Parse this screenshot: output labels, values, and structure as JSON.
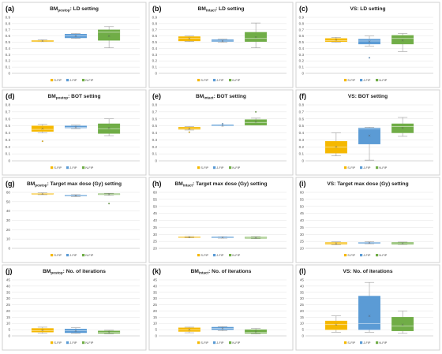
{
  "colors": {
    "S-FIP": "#F5B800",
    "J-FIP": "#5B9BD5",
    "N-FIP": "#70AD47"
  },
  "legend": [
    "S-FIP",
    "J-FIP",
    "N-FIP"
  ],
  "chart_data": [
    {
      "label": "(a)",
      "title": "BM",
      "title_sub": "postop",
      "title_rest": ": LD setting",
      "type": "box",
      "ylim": [
        0,
        0.9
      ],
      "yticks": [
        0,
        0.1,
        0.2,
        0.3,
        0.4,
        0.5,
        0.6,
        0.7,
        0.8,
        0.9
      ],
      "series": [
        {
          "name": "S-FIP",
          "min": 0.51,
          "q1": 0.51,
          "median": 0.52,
          "q3": 0.53,
          "max": 0.54,
          "mean": 0.52
        },
        {
          "name": "J-FIP",
          "min": 0.56,
          "q1": 0.57,
          "median": 0.6,
          "q3": 0.63,
          "max": 0.64,
          "mean": 0.6
        },
        {
          "name": "N-FIP",
          "min": 0.41,
          "q1": 0.53,
          "median": 0.66,
          "q3": 0.7,
          "max": 0.75,
          "mean": 0.6
        }
      ]
    },
    {
      "label": "(b)",
      "title": "BM",
      "title_sub": "intact",
      "title_rest": ": LD setting",
      "type": "box",
      "ylim": [
        0,
        0.9
      ],
      "yticks": [
        0,
        0.1,
        0.2,
        0.3,
        0.4,
        0.5,
        0.6,
        0.7,
        0.8,
        0.9
      ],
      "series": [
        {
          "name": "S-FIP",
          "min": 0.51,
          "q1": 0.52,
          "median": 0.56,
          "q3": 0.59,
          "max": 0.6,
          "mean": 0.56
        },
        {
          "name": "J-FIP",
          "min": 0.5,
          "q1": 0.51,
          "median": 0.52,
          "q3": 0.54,
          "max": 0.55,
          "mean": 0.52
        },
        {
          "name": "N-FIP",
          "min": 0.41,
          "q1": 0.51,
          "median": 0.56,
          "q3": 0.66,
          "max": 0.81,
          "mean": 0.58
        }
      ]
    },
    {
      "label": "(c)",
      "title": "VS: LD setting",
      "title_sub": "",
      "title_rest": "",
      "type": "box",
      "ylim": [
        0,
        0.9
      ],
      "yticks": [
        0,
        0.1,
        0.2,
        0.3,
        0.4,
        0.5,
        0.6,
        0.7,
        0.8,
        0.9
      ],
      "series": [
        {
          "name": "S-FIP",
          "min": 0.5,
          "q1": 0.51,
          "median": 0.53,
          "q3": 0.56,
          "max": 0.58,
          "mean": 0.54,
          "outliers": []
        },
        {
          "name": "J-FIP",
          "min": 0.44,
          "q1": 0.47,
          "median": 0.52,
          "q3": 0.55,
          "max": 0.6,
          "mean": 0.51,
          "outliers": [
            0.25
          ]
        },
        {
          "name": "N-FIP",
          "min": 0.35,
          "q1": 0.47,
          "median": 0.56,
          "q3": 0.61,
          "max": 0.64,
          "mean": 0.53,
          "outliers": []
        }
      ]
    },
    {
      "label": "(d)",
      "title": "BM",
      "title_sub": "postop",
      "title_rest": ": BOT setting",
      "type": "box",
      "ylim": [
        0,
        0.8
      ],
      "yticks": [
        0,
        0.1,
        0.2,
        0.3,
        0.4,
        0.5,
        0.6,
        0.7,
        0.8
      ],
      "series": [
        {
          "name": "S-FIP",
          "min": 0.4,
          "q1": 0.42,
          "median": 0.45,
          "q3": 0.5,
          "max": 0.52,
          "mean": 0.46,
          "outliers": [
            0.28
          ]
        },
        {
          "name": "J-FIP",
          "min": 0.46,
          "q1": 0.47,
          "median": 0.48,
          "q3": 0.5,
          "max": 0.51,
          "mean": 0.48,
          "outliers": []
        },
        {
          "name": "N-FIP",
          "min": 0.36,
          "q1": 0.39,
          "median": 0.46,
          "q3": 0.53,
          "max": 0.6,
          "mean": 0.47,
          "outliers": []
        }
      ]
    },
    {
      "label": "(e)",
      "title": "BM",
      "title_sub": "intact",
      "title_rest": ": BOT setting",
      "type": "box",
      "ylim": [
        0,
        0.8
      ],
      "yticks": [
        0,
        0.1,
        0.2,
        0.3,
        0.4,
        0.5,
        0.6,
        0.7,
        0.8
      ],
      "series": [
        {
          "name": "S-FIP",
          "min": 0.44,
          "q1": 0.45,
          "median": 0.46,
          "q3": 0.48,
          "max": 0.49,
          "mean": 0.46,
          "outliers": [
            0.41
          ]
        },
        {
          "name": "J-FIP",
          "min": 0.5,
          "q1": 0.5,
          "median": 0.5,
          "q3": 0.5,
          "max": 0.51,
          "mean": 0.5,
          "outliers": [
            0.53
          ]
        },
        {
          "name": "N-FIP",
          "min": 0.51,
          "q1": 0.51,
          "median": 0.55,
          "q3": 0.59,
          "max": 0.61,
          "mean": 0.56,
          "outliers": [
            0.7
          ]
        }
      ]
    },
    {
      "label": "(f)",
      "title": "VS: BOT setting",
      "title_sub": "",
      "title_rest": "",
      "type": "box",
      "ylim": [
        0,
        0.8
      ],
      "yticks": [
        0,
        0.1,
        0.2,
        0.3,
        0.4,
        0.5,
        0.6,
        0.7,
        0.8
      ],
      "series": [
        {
          "name": "S-FIP",
          "min": 0.07,
          "q1": 0.11,
          "median": 0.2,
          "q3": 0.28,
          "max": 0.4,
          "mean": 0.2
        },
        {
          "name": "J-FIP",
          "min": 0.01,
          "q1": 0.24,
          "median": 0.46,
          "q3": 0.47,
          "max": 0.48,
          "mean": 0.36
        },
        {
          "name": "N-FIP",
          "min": 0.35,
          "q1": 0.4,
          "median": 0.49,
          "q3": 0.53,
          "max": 0.62,
          "mean": 0.47
        }
      ]
    },
    {
      "label": "(g)",
      "title": "BM",
      "title_sub": "postop",
      "title_rest": ": Target max dose (Gy) setting",
      "type": "box",
      "ylim": [
        0,
        60
      ],
      "yticks": [
        0,
        10,
        20,
        30,
        40,
        50,
        60
      ],
      "series": [
        {
          "name": "S-FIP",
          "min": 57.5,
          "q1": 58,
          "median": 58.5,
          "q3": 59,
          "max": 59.5,
          "mean": 58.5,
          "outliers": []
        },
        {
          "name": "J-FIP",
          "min": 55.5,
          "q1": 56,
          "median": 56.5,
          "q3": 57,
          "max": 57.5,
          "mean": 56.5,
          "outliers": []
        },
        {
          "name": "N-FIP",
          "min": 57,
          "q1": 57.5,
          "median": 58,
          "q3": 58.5,
          "max": 59,
          "mean": 58,
          "outliers": [
            48
          ]
        }
      ]
    },
    {
      "label": "(h)",
      "title": "BM",
      "title_sub": "intact",
      "title_rest": ": Target max dose (Gy) setting",
      "type": "box",
      "ylim": [
        20,
        60
      ],
      "yticks": [
        20,
        25,
        30,
        35,
        40,
        45,
        50,
        55,
        60
      ],
      "series": [
        {
          "name": "S-FIP",
          "min": 27.5,
          "q1": 27.7,
          "median": 28,
          "q3": 28.3,
          "max": 28.5,
          "mean": 28
        },
        {
          "name": "J-FIP",
          "min": 27.3,
          "q1": 27.5,
          "median": 27.8,
          "q3": 28,
          "max": 28.2,
          "mean": 27.8
        },
        {
          "name": "N-FIP",
          "min": 27,
          "q1": 27.2,
          "median": 27.6,
          "q3": 28,
          "max": 28.3,
          "mean": 27.6
        }
      ]
    },
    {
      "label": "(i)",
      "title": "VS: Target max dose (Gy) setting",
      "title_sub": "",
      "title_rest": "",
      "type": "box",
      "ylim": [
        20,
        60
      ],
      "yticks": [
        20,
        25,
        30,
        35,
        40,
        45,
        50,
        55,
        60
      ],
      "series": [
        {
          "name": "S-FIP",
          "min": 22.5,
          "q1": 23,
          "median": 23.5,
          "q3": 24.2,
          "max": 24.6,
          "mean": 23.5
        },
        {
          "name": "J-FIP",
          "min": 23.3,
          "q1": 23.6,
          "median": 24,
          "q3": 24.3,
          "max": 24.6,
          "mean": 24
        },
        {
          "name": "N-FIP",
          "min": 22.8,
          "q1": 23,
          "median": 23.5,
          "q3": 24.2,
          "max": 24.5,
          "mean": 23.5
        }
      ]
    },
    {
      "label": "(j)",
      "title": "BM",
      "title_sub": "postop",
      "title_rest": ": No. of iterations",
      "type": "box",
      "ylim": [
        0,
        45
      ],
      "yticks": [
        0,
        5,
        10,
        15,
        20,
        25,
        30,
        35,
        40,
        45
      ],
      "series": [
        {
          "name": "S-FIP",
          "min": 2,
          "q1": 3,
          "median": 4,
          "q3": 6,
          "max": 7,
          "mean": 4.5
        },
        {
          "name": "J-FIP",
          "min": 2,
          "q1": 2.5,
          "median": 4,
          "q3": 5.5,
          "max": 6.5,
          "mean": 4
        },
        {
          "name": "N-FIP",
          "min": 1.5,
          "q1": 2,
          "median": 3,
          "q3": 4,
          "max": 4.5,
          "mean": 3
        }
      ]
    },
    {
      "label": "(k)",
      "title": "BM",
      "title_sub": "intact",
      "title_rest": ": No. of iterations",
      "type": "box",
      "ylim": [
        0,
        45
      ],
      "yticks": [
        0,
        5,
        10,
        15,
        20,
        25,
        30,
        35,
        40,
        45
      ],
      "series": [
        {
          "name": "S-FIP",
          "min": 2.5,
          "q1": 3.5,
          "median": 5,
          "q3": 6.5,
          "max": 7,
          "mean": 5
        },
        {
          "name": "J-FIP",
          "min": 4,
          "q1": 5,
          "median": 6,
          "q3": 7,
          "max": 7.5,
          "mean": 6
        },
        {
          "name": "N-FIP",
          "min": 1.5,
          "q1": 2,
          "median": 3,
          "q3": 5,
          "max": 6,
          "mean": 3.5
        }
      ]
    },
    {
      "label": "(l)",
      "title": "VS: No. of iterations",
      "title_sub": "",
      "title_rest": "",
      "type": "box",
      "ylim": [
        0,
        45
      ],
      "yticks": [
        0,
        5,
        10,
        15,
        20,
        25,
        30,
        35,
        40,
        45
      ],
      "series": [
        {
          "name": "S-FIP",
          "min": 3,
          "q1": 5,
          "median": 9,
          "q3": 12,
          "max": 16,
          "mean": 9
        },
        {
          "name": "J-FIP",
          "min": 3,
          "q1": 5,
          "median": 10,
          "q3": 32,
          "max": 43,
          "mean": 16
        },
        {
          "name": "N-FIP",
          "min": 2,
          "q1": 4,
          "median": 8,
          "q3": 15,
          "max": 20,
          "mean": 9
        }
      ]
    }
  ]
}
